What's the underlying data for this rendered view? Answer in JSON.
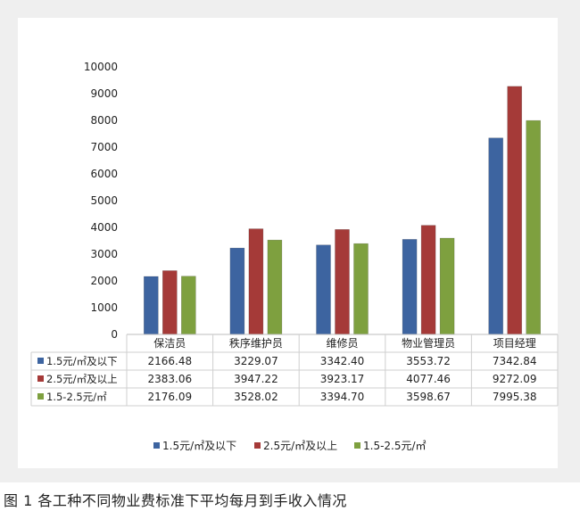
{
  "caption": "图 1 各工种不同物业费标准下平均每月到手收入情况",
  "chart_data": {
    "type": "bar",
    "title": "",
    "xlabel": "",
    "ylabel": "",
    "ylim": [
      0,
      10000
    ],
    "yticks": [
      "0",
      "1000",
      "2000",
      "3000",
      "4000",
      "5000",
      "6000",
      "7000",
      "8000",
      "9000",
      "10000"
    ],
    "categories": [
      "保洁员",
      "秩序维护员",
      "维修员",
      "物业管理员",
      "项目经理"
    ],
    "series": [
      {
        "name": "1.5元/㎡及以下",
        "color": "#3d64a0",
        "values": [
          2166.48,
          3229.07,
          3342.4,
          3553.72,
          7342.84
        ],
        "labels": [
          "2166.48",
          "3229.07",
          "3342.40",
          "3553.72",
          "7342.84"
        ]
      },
      {
        "name": "2.5元/㎡及以上",
        "color": "#a53a38",
        "values": [
          2383.06,
          3947.22,
          3923.17,
          4077.46,
          9272.09
        ],
        "labels": [
          "2383.06",
          "3947.22",
          "3923.17",
          "4077.46",
          "9272.09"
        ]
      },
      {
        "name": "1.5-2.5元/㎡",
        "color": "#7ea03f",
        "values": [
          2176.09,
          3528.02,
          3394.7,
          3598.67,
          7995.38
        ],
        "labels": [
          "2176.09",
          "3528.02",
          "3394.70",
          "3598.67",
          "7995.38"
        ]
      }
    ],
    "grid": false,
    "legend_position": "bottom",
    "data_table": true
  }
}
